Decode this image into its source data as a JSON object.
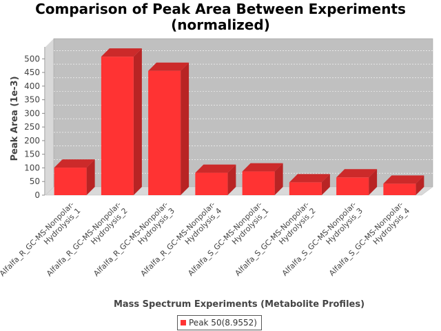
{
  "chart_data": {
    "type": "bar",
    "title_lines": [
      "Comparison of Peak Area Between Experiments",
      "(normalized)"
    ],
    "xlabel": "Mass Spectrum Experiments (Metabolite Profiles)",
    "ylabel": "Peak Area (1e-3)",
    "ylim": [
      0,
      500
    ],
    "yticks": [
      0,
      50,
      100,
      150,
      200,
      250,
      300,
      350,
      400,
      450,
      500
    ],
    "grid": true,
    "legend_position": "bottom",
    "categories": [
      [
        "Alfalfa_R_GC-MS-Nonpolar-",
        "Hydrolysis_1"
      ],
      [
        "Alfalfa_R_GC-MS-Nonpolar-",
        "Hydrolysis_2"
      ],
      [
        "Alfalfa_R_GC-MS-Nonpolar-",
        "Hydrolysis_3"
      ],
      [
        "Alfalfa_R_GC-MS-Nonpolar-",
        "Hydrolysis_4"
      ],
      [
        "Alfalfa_S_GC-MS-Nonpolar-",
        "Hydrolysis_1"
      ],
      [
        "Alfalfa_S_GC-MS-Nonpolar-",
        "Hydrolysis_2"
      ],
      [
        "Alfalfa_S_GC-MS-Nonpolar-",
        "Hydrolysis_3"
      ],
      [
        "Alfalfa_S_GC-MS-Nonpolar-",
        "Hydrolysis_4"
      ]
    ],
    "series": [
      {
        "name": "Peak 50(8.9552)",
        "color": "#ff3333",
        "values": [
          101,
          508,
          456,
          82,
          87,
          47,
          65,
          42
        ]
      }
    ]
  }
}
